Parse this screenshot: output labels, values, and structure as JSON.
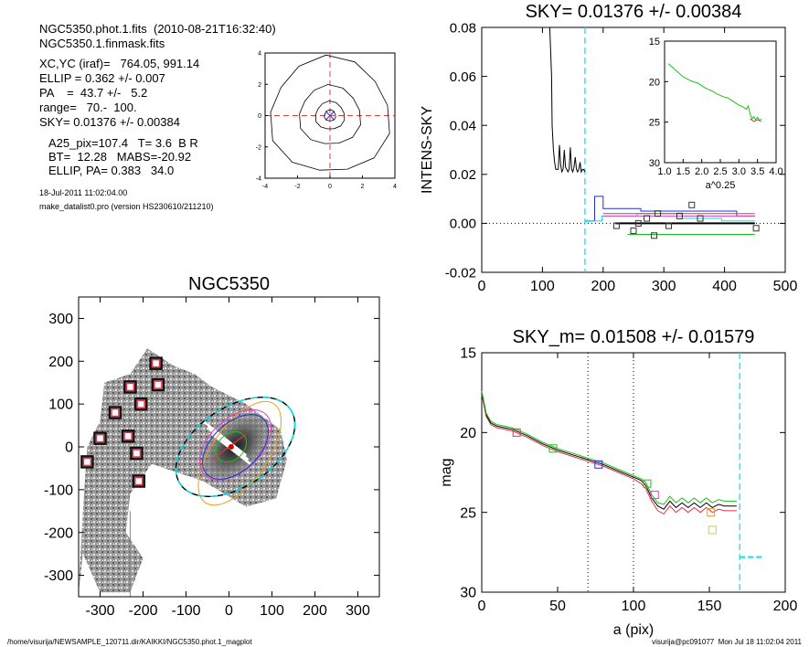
{
  "header": {
    "line1": "NGC5350.phot.1.fits  (2010-08-21T16:32:40)",
    "line2": "NGC5350.1.finmask.fits",
    "xcyc": "XC,YC (iraf)=   764.05, 991.14",
    "ellip": "ELLIP = 0.362 +/- 0.007",
    "pa": "PA    =  43.7 +/-   5.2",
    "range": "range=   70.-  100.",
    "sky": "SKY= 0.01376 +/- 0.00384",
    "a25": "A25_pix=107.4   T= 3.6  B R",
    "bt": "BT=  12.28   MABS=-20.92",
    "ellippa": "ELLIP, PA= 0.383   34.0",
    "date": "18-Jul-2011 11:02:04.00",
    "program": "make_datalist0.pro (version HS230610/211210)"
  },
  "footer": {
    "path": "/home/visurija/NEWSAMPLE_120711.dir/KAIKKI/NGC5350.phot.1_magplot",
    "user": "visurija@pc091077  Mon Jul 18 11:02:04 2011"
  },
  "colors": {
    "cyan": "#00e5ee",
    "green": "#19c319",
    "red": "#e8304a",
    "blue": "#2030d0",
    "magenta": "#e040c8",
    "orange": "#ef9a20",
    "yellow": "#d4d420"
  },
  "chart_data": [
    {
      "id": "contour",
      "type": "contour",
      "title": "",
      "xlim": [
        -4,
        4
      ],
      "ylim": [
        -4,
        4
      ],
      "xticks": [
        -4,
        -2,
        0,
        2,
        4
      ],
      "yticks": [
        -4,
        -2,
        0,
        2,
        4
      ],
      "contour_radii": [
        3.7,
        1.9,
        0.9,
        0.35
      ]
    },
    {
      "id": "sky",
      "type": "line",
      "title": "SKY= 0.01376 +/- 0.00384",
      "xlabel": "",
      "ylabel": "INTENS-SKY",
      "xlim": [
        0,
        500
      ],
      "ylim": [
        -0.02,
        0.08
      ],
      "xticks": [
        0,
        100,
        200,
        300,
        400,
        500
      ],
      "yticks": [
        -0.02,
        0.0,
        0.02,
        0.04,
        0.06,
        0.08
      ],
      "ytick_labels": [
        "-0.02",
        "0.00",
        "0.02",
        "0.04",
        "0.06",
        "0.08"
      ],
      "series": [
        {
          "color": "black",
          "x": [
            112,
            115,
            116,
            118,
            120,
            122,
            126,
            128,
            130,
            132,
            134,
            136,
            138,
            140,
            142,
            144,
            146,
            148,
            150,
            152,
            154,
            156,
            158,
            160,
            162,
            164,
            166,
            168,
            170
          ],
          "y": [
            0.08,
            0.06,
            0.04,
            0.03,
            0.025,
            0.022,
            0.022,
            0.032,
            0.024,
            0.021,
            0.022,
            0.03,
            0.023,
            0.022,
            0.021,
            0.022,
            0.031,
            0.022,
            0.021,
            0.023,
            0.027,
            0.022,
            0.021,
            0.022,
            0.025,
            0.021,
            0.022,
            0.022,
            0.021
          ]
        },
        {
          "color": "blue",
          "x": [
            172,
            186,
            186,
            200,
            200,
            262,
            262,
            420,
            420,
            450
          ],
          "y": [
            0.001,
            0.001,
            0.011,
            0.011,
            0.006,
            0.006,
            0.005,
            0.005,
            0.003,
            0.003
          ]
        },
        {
          "color": "cyan",
          "x": [
            170,
            198,
            198,
            256,
            256,
            330,
            330,
            395,
            395,
            450
          ],
          "y": [
            0.001,
            0.001,
            0.003,
            0.003,
            0.004,
            0.004,
            0.002,
            0.002,
            0.001,
            0.001
          ]
        },
        {
          "color": "magenta",
          "x": [
            200,
            450
          ],
          "y": [
            0.003,
            0.003
          ]
        },
        {
          "color": "red",
          "x": [
            200,
            450
          ],
          "y": [
            0.004,
            0.004
          ]
        },
        {
          "color": "black",
          "x": [
            220,
            450
          ],
          "y": [
            0.0,
            0.0
          ]
        },
        {
          "color": "green",
          "x": [
            240,
            450
          ],
          "y": [
            -0.0045,
            -0.0045
          ]
        }
      ],
      "squares": {
        "x": [
          222,
          250,
          258,
          272,
          284,
          290,
          308,
          326,
          346,
          360,
          452
        ],
        "y": [
          -0.001,
          -0.003,
          0.0,
          0.002,
          -0.005,
          0.004,
          -0.001,
          0.003,
          0.0075,
          0.002,
          -0.002
        ]
      },
      "sky_level": 0.0,
      "vline_x": 170,
      "hline": {
        "x": [
          170,
          185
        ],
        "y": 0.001
      }
    },
    {
      "id": "inset",
      "type": "line",
      "title": "",
      "xlabel": "a^0.25",
      "ylabel": "",
      "xlim": [
        1.0,
        4.0
      ],
      "ylim": [
        30,
        15
      ],
      "xticks": [
        1.0,
        1.5,
        2.0,
        2.5,
        3.0,
        3.5,
        4.0
      ],
      "xtick_labels": [
        "1.0",
        "1.5",
        "2.0",
        "2.5",
        "3.0",
        "3.5",
        "4.0"
      ],
      "yticks": [
        15,
        20,
        25,
        30
      ],
      "series": [
        {
          "color": "red",
          "x": [
            3.3,
            3.4,
            3.5,
            3.6
          ],
          "y": [
            24.6,
            24.9,
            24.7,
            24.9
          ]
        },
        {
          "color": "green",
          "x": [
            1.1,
            1.3,
            1.5,
            1.7,
            1.9,
            2.0,
            2.1,
            2.2,
            2.3,
            2.4,
            2.5,
            2.6,
            2.7,
            2.8,
            2.9,
            3.0,
            3.1,
            3.2,
            3.25,
            3.3,
            3.35,
            3.4,
            3.45,
            3.5,
            3.55,
            3.6
          ],
          "y": [
            17.8,
            18.6,
            19.4,
            19.9,
            20.2,
            20.5,
            20.8,
            21.0,
            21.2,
            21.5,
            21.7,
            21.9,
            22.0,
            22.3,
            22.6,
            22.9,
            23.1,
            23.4,
            23.0,
            24.0,
            24.6,
            24.3,
            24.7,
            24.4,
            24.8,
            24.6
          ]
        }
      ]
    },
    {
      "id": "image",
      "type": "image",
      "title": "NGC5350",
      "xlim": [
        -350,
        350
      ],
      "ylim": [
        -350,
        350
      ],
      "xticks": [
        -300,
        -200,
        -100,
        0,
        100,
        200,
        300
      ],
      "yticks": [
        -300,
        -200,
        -100,
        0,
        100,
        200,
        300
      ],
      "masks": {
        "x": [
          -330,
          -300,
          -265,
          -235,
          -230,
          -215,
          -210,
          -205,
          -170,
          -165
        ],
        "y": [
          -35,
          20,
          80,
          25,
          140,
          -15,
          -80,
          100,
          195,
          145
        ]
      },
      "ellipses": [
        {
          "color": "black",
          "cx": 15,
          "cy": 0,
          "a": 155,
          "b": 92,
          "angle": 34,
          "dashed_color": "cyan"
        },
        {
          "color": "orange",
          "cx": 25,
          "cy": -15,
          "a": 140,
          "b": 65,
          "angle": 55
        },
        {
          "color": "magenta",
          "cx": 15,
          "cy": 5,
          "a": 100,
          "b": 60,
          "angle": 44
        },
        {
          "color": "blue",
          "cx": 15,
          "cy": 0,
          "a": 92,
          "b": 55,
          "angle": 44
        },
        {
          "color": "green",
          "cx": 5,
          "cy": 0,
          "a": 40,
          "b": 30,
          "angle": 44
        }
      ]
    },
    {
      "id": "mag",
      "type": "line",
      "title": "SKY_m=  0.01508 +/- 0.01579",
      "xlabel": "a (pix)",
      "ylabel": "mag",
      "xlim": [
        0,
        200
      ],
      "ylim": [
        30,
        15
      ],
      "xticks": [
        0,
        50,
        100,
        150,
        200
      ],
      "yticks": [
        15,
        20,
        25,
        30
      ],
      "series": [
        {
          "color": "red",
          "x": [
            0,
            3,
            6,
            10,
            15,
            20,
            30,
            40,
            50,
            60,
            70,
            80,
            90,
            100,
            105,
            108,
            112,
            116,
            120,
            124,
            128,
            132,
            136,
            140,
            144,
            148,
            152,
            156,
            160,
            164,
            168
          ],
          "y": [
            17.6,
            19.0,
            19.5,
            19.7,
            19.8,
            19.9,
            20.3,
            20.8,
            21.2,
            21.5,
            21.8,
            22.1,
            22.5,
            22.9,
            23.2,
            23.5,
            24.3,
            24.9,
            25.1,
            24.6,
            25.0,
            24.7,
            25.0,
            24.7,
            25.0,
            24.7,
            25.0,
            24.8,
            24.9,
            24.9,
            24.9
          ]
        },
        {
          "color": "black",
          "x": [
            0,
            3,
            6,
            10,
            15,
            20,
            30,
            40,
            50,
            60,
            70,
            80,
            90,
            100,
            105,
            108,
            112,
            116,
            120,
            124,
            128,
            132,
            136,
            140,
            144,
            148,
            152,
            156,
            160,
            164,
            168
          ],
          "y": [
            17.5,
            18.9,
            19.4,
            19.6,
            19.7,
            19.8,
            20.2,
            20.7,
            21.1,
            21.4,
            21.7,
            22.0,
            22.4,
            22.8,
            23.0,
            23.3,
            24.1,
            24.6,
            24.8,
            24.3,
            24.7,
            24.4,
            24.7,
            24.4,
            24.7,
            24.4,
            24.7,
            24.5,
            24.6,
            24.6,
            24.6
          ]
        },
        {
          "color": "green",
          "x": [
            0,
            3,
            6,
            10,
            15,
            20,
            30,
            40,
            50,
            60,
            70,
            80,
            90,
            100,
            105,
            108,
            112,
            116,
            120,
            124,
            128,
            132,
            136,
            140,
            144,
            148,
            152,
            156,
            160,
            164,
            168
          ],
          "y": [
            17.4,
            18.8,
            19.3,
            19.5,
            19.6,
            19.7,
            20.1,
            20.6,
            21.0,
            21.3,
            21.6,
            21.9,
            22.3,
            22.7,
            22.9,
            23.1,
            23.9,
            24.4,
            24.5,
            24.0,
            24.4,
            24.1,
            24.4,
            24.1,
            24.4,
            24.1,
            24.4,
            24.2,
            24.3,
            24.3,
            24.3
          ]
        }
      ],
      "squares": [
        {
          "x": 23,
          "y": 20.0,
          "color": "red"
        },
        {
          "x": 47,
          "y": 21.0,
          "color": "green"
        },
        {
          "x": 77,
          "y": 22.0,
          "color": "blue"
        },
        {
          "x": 109,
          "y": 23.2,
          "color": "green"
        },
        {
          "x": 114,
          "y": 23.9,
          "color": "magenta"
        },
        {
          "x": 151,
          "y": 25.0,
          "color": "orange"
        },
        {
          "x": 152,
          "y": 26.1,
          "color": "yellow"
        }
      ],
      "vlines_dotted": [
        70,
        100
      ],
      "vline_cyan": 170,
      "hline_cyan": {
        "x": [
          170,
          185
        ],
        "y": 27.8
      }
    }
  ]
}
